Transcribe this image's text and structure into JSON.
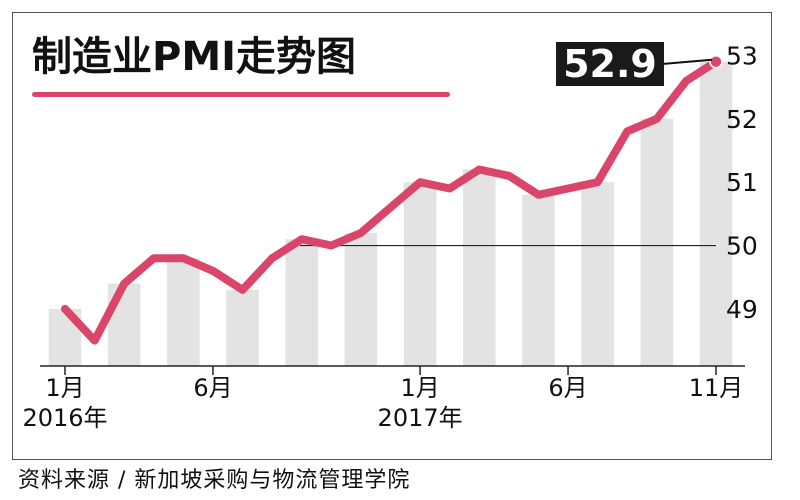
{
  "chart_data": {
    "type": "line",
    "title": "制造业PMI走势图",
    "callout_value": "52.9",
    "x_tick_labels": [
      {
        "index": 0,
        "line1": "1月",
        "line2": "2016年"
      },
      {
        "index": 5,
        "line1": "6月",
        "line2": ""
      },
      {
        "index": 12,
        "line1": "1月",
        "line2": "2017年"
      },
      {
        "index": 17,
        "line1": "6月",
        "line2": ""
      },
      {
        "index": 22,
        "line1": "11月",
        "line2": ""
      }
    ],
    "y_ticks": [
      49,
      50,
      51,
      52,
      53
    ],
    "ylim": [
      48.1,
      53.4
    ],
    "reference_line": 50,
    "values": [
      49.0,
      48.5,
      49.4,
      49.8,
      49.8,
      49.6,
      49.3,
      49.8,
      50.1,
      50.0,
      50.2,
      50.6,
      51.0,
      50.9,
      51.2,
      51.1,
      50.8,
      50.9,
      51.0,
      51.8,
      52.0,
      52.6,
      52.9
    ],
    "colors": {
      "line": "#d9466a",
      "bars": "#e3e3e3",
      "callout_bg": "#1a1a1a",
      "callout_text": "#ffffff"
    }
  },
  "source": "资料来源 / 新加坡采购与物流管理学院"
}
